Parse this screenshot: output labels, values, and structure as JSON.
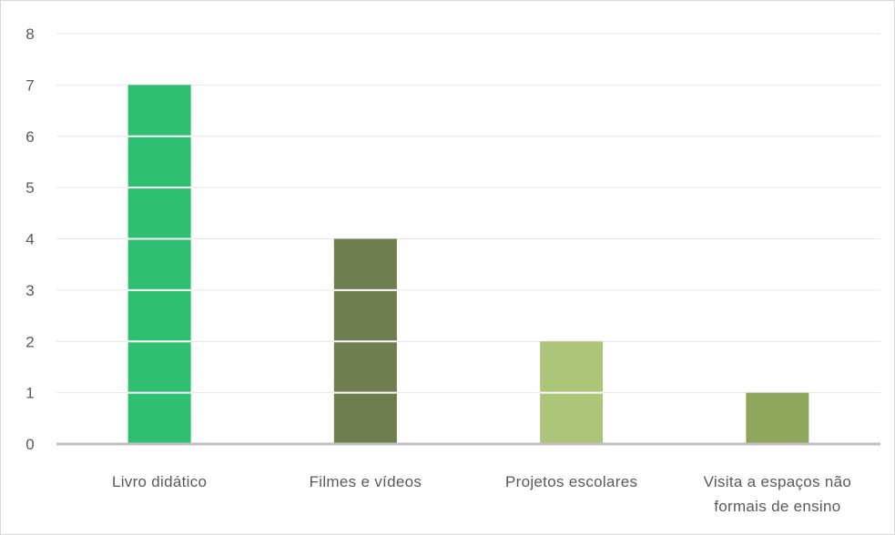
{
  "chart_data": {
    "type": "bar",
    "categories": [
      [
        "Livro didático"
      ],
      [
        "Filmes e vídeos"
      ],
      [
        "Projetos escolares"
      ],
      [
        "Visita a espaços não",
        "formais de ensino"
      ]
    ],
    "values": [
      7,
      4,
      2,
      1
    ],
    "bar_colors": [
      "#2fbf71",
      "#6e7e4f",
      "#adc579",
      "#90a65d"
    ],
    "y_ticks": [
      0,
      1,
      2,
      3,
      4,
      5,
      6,
      7,
      8
    ],
    "ylim": [
      0,
      8
    ],
    "grid": true,
    "legend": "none"
  }
}
